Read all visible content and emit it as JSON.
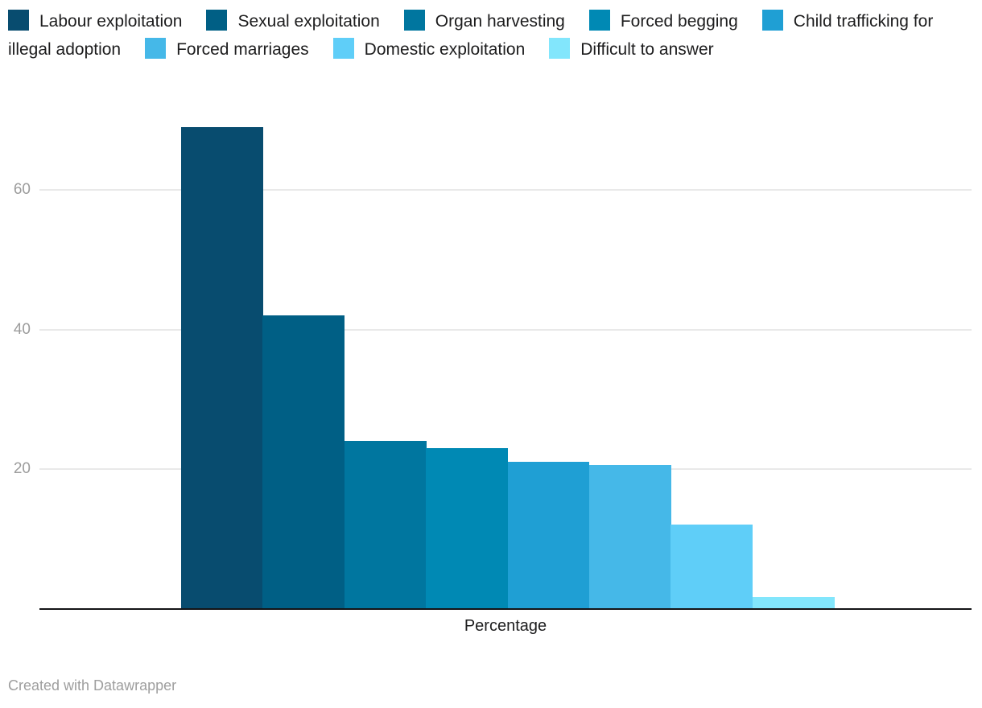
{
  "chart_data": {
    "type": "bar",
    "title": "",
    "categories": [
      "Percentage"
    ],
    "series": [
      {
        "name": "Labour exploitation",
        "value": 69,
        "color": "#084c6f"
      },
      {
        "name": "Sexual exploitation",
        "value": 42,
        "color": "#005f85"
      },
      {
        "name": "Organ harvesting",
        "value": 24,
        "color": "#00769f"
      },
      {
        "name": "Forced begging",
        "value": 23,
        "color": "#0089b4"
      },
      {
        "name": "Child trafficking for illegal adoption",
        "value": 21,
        "color": "#1f9fd4"
      },
      {
        "name": "Forced marriages",
        "value": 20.6,
        "color": "#45b8e8"
      },
      {
        "name": "Domestic exploitation",
        "value": 12,
        "color": "#5fcef8"
      },
      {
        "name": "Difficult to answer",
        "value": 1.6,
        "color": "#82e6fc"
      }
    ],
    "xlabel": "Percentage",
    "ylabel": "",
    "ylim": [
      0,
      70
    ],
    "yticks": [
      20,
      40,
      60
    ],
    "grid": true,
    "legend_position": "top",
    "bar_gap": 0
  },
  "axis": {
    "x_label": "Percentage",
    "y_tick_labels": [
      "20",
      "40",
      "60"
    ]
  },
  "footer": {
    "credit": "Created with Datawrapper"
  },
  "style": {
    "background": "#ffffff",
    "grid_color": "#e9e9e9",
    "axis_line_color": "#141417",
    "tick_label_color": "#9c9c9c",
    "legend_text_color": "#1d1d1e",
    "footer_text_color": "#9e9e9e"
  }
}
